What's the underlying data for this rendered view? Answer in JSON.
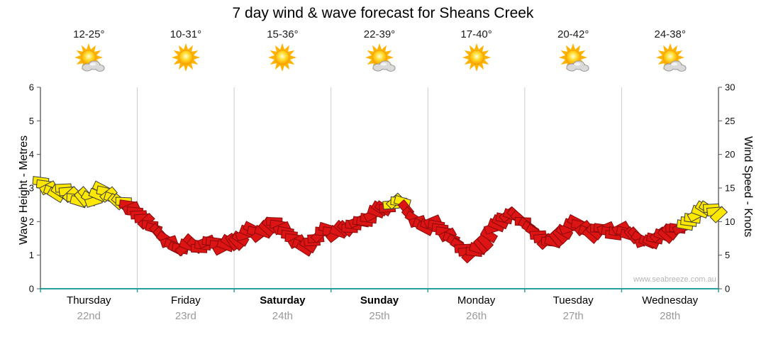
{
  "title": "7 day wind & wave forecast for Sheans Creek",
  "watermark": "www.seabreeze.com.au",
  "colors": {
    "axis_teal": "#2a9d9d",
    "grid": "#cccccc",
    "spine": "#555555",
    "tick_text": "#111111"
  },
  "days": [
    {
      "name": "Thursday",
      "date": "22nd",
      "temp": "12-25°",
      "icon": "sun-cloud",
      "bold": false
    },
    {
      "name": "Friday",
      "date": "23rd",
      "temp": "10-31°",
      "icon": "sun",
      "bold": false
    },
    {
      "name": "Saturday",
      "date": "24th",
      "temp": "15-36°",
      "icon": "sun",
      "bold": true
    },
    {
      "name": "Sunday",
      "date": "25th",
      "temp": "22-39°",
      "icon": "sun-cloud",
      "bold": true
    },
    {
      "name": "Monday",
      "date": "26th",
      "temp": "17-40°",
      "icon": "sun",
      "bold": false
    },
    {
      "name": "Tuesday",
      "date": "27th",
      "temp": "20-42°",
      "icon": "sun-cloud",
      "bold": false
    },
    {
      "name": "Wednesday",
      "date": "28th",
      "temp": "24-38°",
      "icon": "sun-cloud",
      "bold": false
    }
  ],
  "chart_data": {
    "type": "wind_barbs",
    "description": "Wind strength flag ribbon, 13 samples per day over 7 days",
    "samples_per_day": 13,
    "y_left": {
      "label": "Wave Height - Metres",
      "min": 0,
      "max": 6,
      "ticks": [
        0,
        1,
        2,
        3,
        4,
        5,
        6
      ]
    },
    "y_right": {
      "label": "Wind Speed - Knots",
      "min": 0,
      "max": 30,
      "ticks": [
        0,
        5,
        10,
        15,
        20,
        25,
        30
      ]
    },
    "flag_palette": {
      "Y": {
        "fill": "#ffe800",
        "stroke": "#3c3c3c"
      },
      "R": {
        "fill": "#dc1414",
        "stroke": "#8a0a0a"
      }
    },
    "wind_speed_knots": [
      16,
      15,
      14,
      15,
      14,
      13,
      14,
      13,
      15,
      14,
      13,
      13,
      12,
      11,
      10,
      9,
      8,
      7,
      6,
      6,
      7,
      6,
      7,
      7,
      6,
      7,
      7,
      8,
      9,
      8,
      9,
      10,
      9,
      8,
      7,
      6,
      7,
      8,
      9,
      8,
      9,
      9,
      10,
      10,
      11,
      12,
      12,
      13,
      13,
      11,
      10,
      9,
      10,
      9,
      8,
      7,
      6,
      5,
      6,
      7,
      9,
      10,
      11,
      11,
      10,
      9,
      8,
      7,
      7,
      8,
      9,
      10,
      9,
      8,
      9,
      9,
      8,
      9,
      8,
      8,
      7,
      7,
      8,
      8,
      9,
      9,
      10,
      11,
      12,
      12,
      11
    ],
    "flag_colors": [
      "Y",
      "Y",
      "Y",
      "Y",
      "Y",
      "Y",
      "Y",
      "Y",
      "Y",
      "Y",
      "Y",
      "Y",
      "R",
      "R",
      "R",
      "R",
      "R",
      "R",
      "R",
      "R",
      "R",
      "R",
      "R",
      "R",
      "R",
      "R",
      "R",
      "R",
      "R",
      "R",
      "R",
      "R",
      "R",
      "R",
      "R",
      "R",
      "R",
      "R",
      "R",
      "R",
      "R",
      "R",
      "R",
      "R",
      "R",
      "R",
      "R",
      "Y",
      "Y",
      "R",
      "R",
      "R",
      "R",
      "R",
      "R",
      "R",
      "R",
      "R",
      "R",
      "R",
      "R",
      "R",
      "R",
      "R",
      "R",
      "R",
      "R",
      "R",
      "R",
      "R",
      "R",
      "R",
      "R",
      "R",
      "R",
      "R",
      "R",
      "R",
      "R",
      "R",
      "R",
      "R",
      "R",
      "R",
      "R",
      "R",
      "Y",
      "Y",
      "Y",
      "Y",
      "Y"
    ],
    "flag_angles_deg": [
      10,
      -25,
      35,
      0,
      -40,
      20,
      50,
      -15,
      30,
      -35,
      45,
      5,
      -20,
      0,
      -40,
      20,
      50,
      -15,
      30,
      -35,
      45,
      5,
      -20,
      10,
      -25,
      35,
      50,
      -15,
      30,
      -35,
      45,
      5,
      -20,
      10,
      -25,
      35,
      0,
      -40,
      20,
      -35,
      45,
      5,
      -20,
      10,
      -25,
      35,
      0,
      -40,
      20,
      50,
      -15,
      30,
      -20,
      10,
      -25,
      35,
      0,
      -40,
      20,
      50,
      -15,
      30,
      -35,
      45,
      5,
      35,
      0,
      -40,
      20,
      50,
      -15,
      30,
      -35,
      45,
      5,
      -20,
      10,
      -25,
      20,
      50,
      -15,
      30,
      -35,
      45,
      5,
      -20,
      10,
      -25,
      35,
      0,
      -40
    ]
  }
}
